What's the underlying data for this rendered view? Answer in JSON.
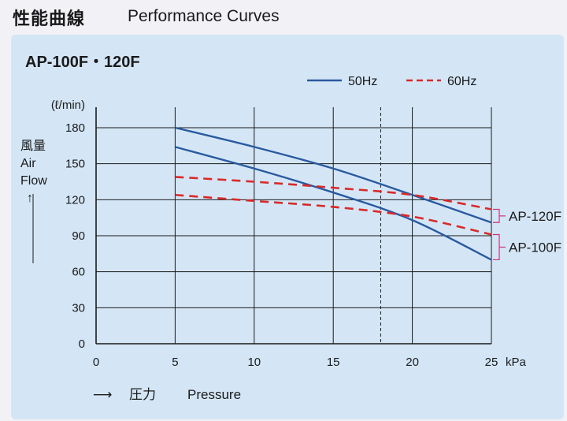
{
  "header": {
    "title_jp": "性能曲線",
    "title_en": "Performance Curves"
  },
  "colors": {
    "hz50": "#2a5aa0",
    "hz60": "#d92a2a",
    "bracket": "#c9357a",
    "grid": "#1a1a1a",
    "panel_bg": "#d4e6f6"
  },
  "chart_data": {
    "type": "line",
    "title": "AP-100F・120F",
    "x_unit": "kPa",
    "y_unit": "(ℓ/min)",
    "ylabel_lines": [
      "風量",
      "Air",
      "Flow",
      "↑"
    ],
    "xlabel_arrow": "⟶",
    "xlabel_jp": "圧力",
    "xlabel_en": "Pressure",
    "xlim": [
      0,
      25
    ],
    "ylim": [
      0,
      180
    ],
    "x_ticks": [
      0,
      5,
      10,
      15,
      20,
      25
    ],
    "y_ticks": [
      0,
      30,
      60,
      90,
      120,
      150,
      180
    ],
    "grid": true,
    "reference_line_x": 18,
    "legend": {
      "placement": "top-right",
      "entries": [
        {
          "label": "50Hz",
          "style": "solid"
        },
        {
          "label": "60Hz",
          "style": "dashed"
        }
      ]
    },
    "series": [
      {
        "model": "AP-120F",
        "hz": "50Hz",
        "style": "solid",
        "x": [
          5,
          10,
          15,
          20,
          25
        ],
        "y": [
          180,
          164,
          146,
          124,
          101
        ]
      },
      {
        "model": "AP-100F",
        "hz": "50Hz",
        "style": "solid",
        "x": [
          5,
          10,
          15,
          20,
          25
        ],
        "y": [
          164,
          146,
          126,
          103,
          70
        ]
      },
      {
        "model": "AP-120F",
        "hz": "60Hz",
        "style": "dashed",
        "x": [
          5,
          10,
          15,
          20,
          25
        ],
        "y": [
          139,
          135,
          130,
          124,
          112
        ]
      },
      {
        "model": "AP-100F",
        "hz": "60Hz",
        "style": "dashed",
        "x": [
          5,
          10,
          15,
          20,
          25
        ],
        "y": [
          124,
          119,
          114,
          106,
          91
        ]
      }
    ],
    "model_labels": [
      {
        "text": "AP-120F",
        "series_top": 0,
        "series_bottom": 2
      },
      {
        "text": "AP-100F",
        "series_top": 1,
        "series_bottom": 3
      }
    ]
  }
}
